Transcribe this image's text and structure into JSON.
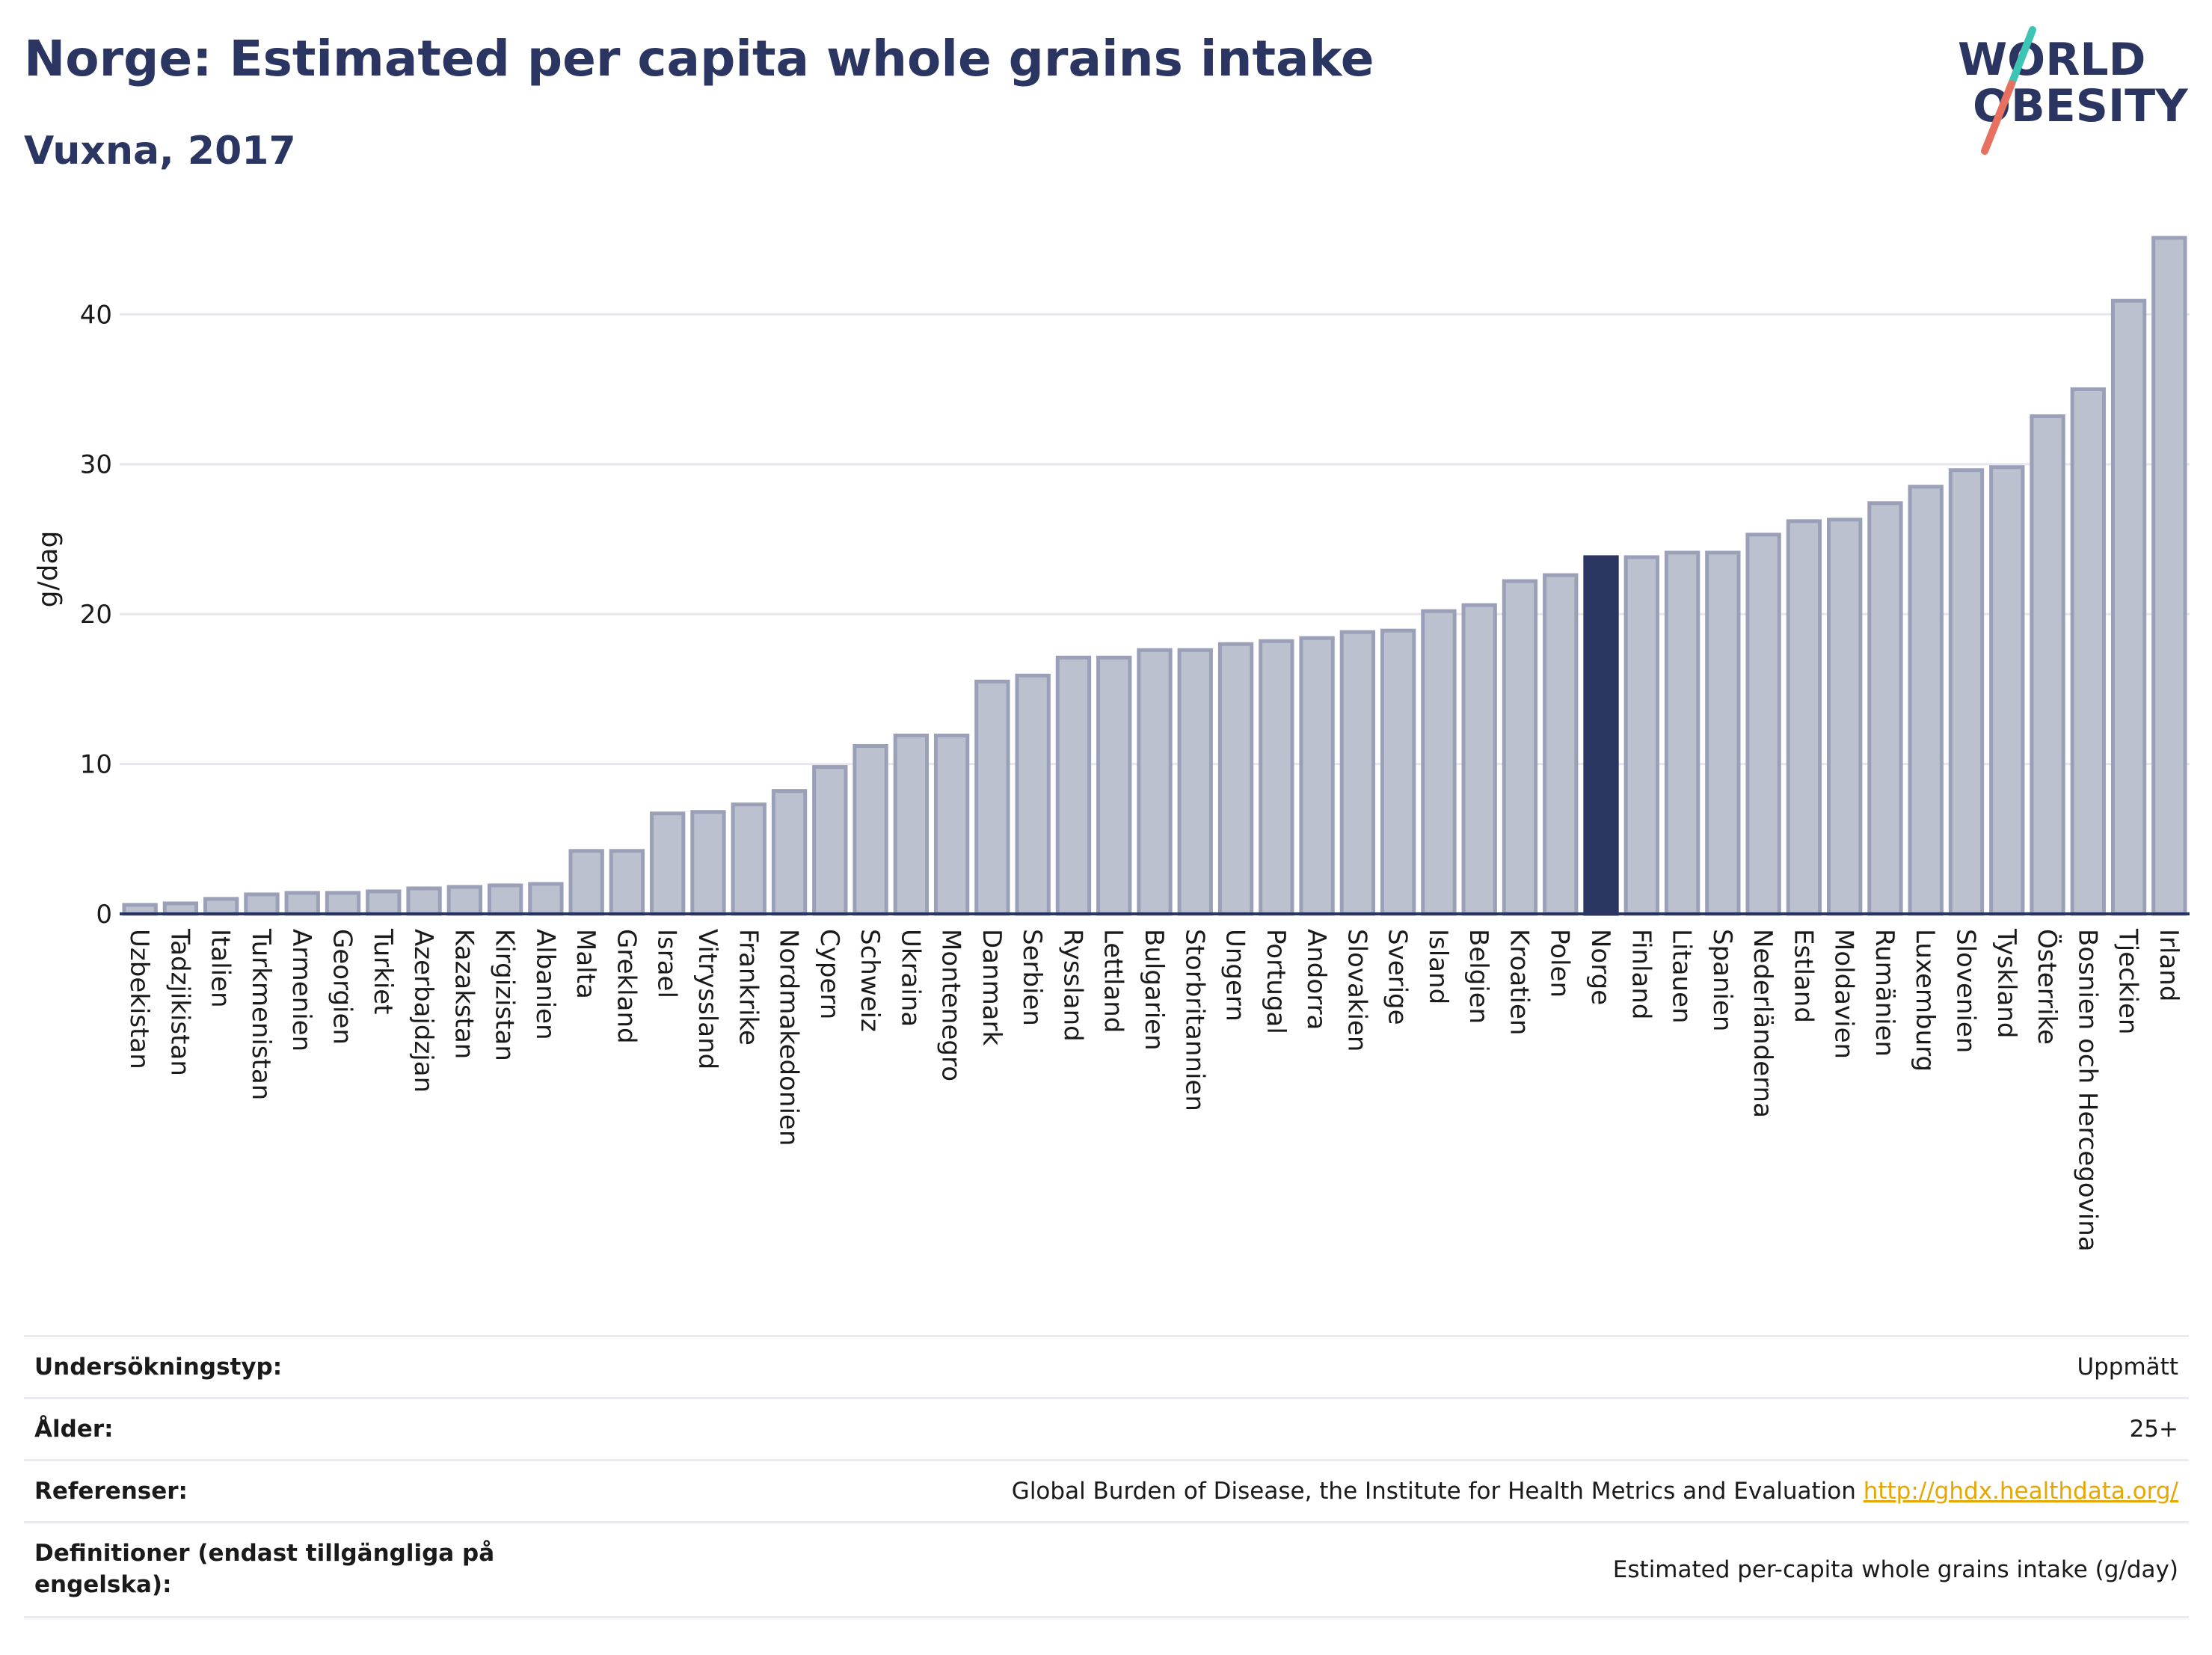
{
  "header": {
    "title": "Norge: Estimated per capita whole grains intake",
    "subtitle": "Vuxna, 2017"
  },
  "logo": {
    "line1": "WORLD",
    "line2": "OBESITY"
  },
  "colors": {
    "bar": "#bcc1cf",
    "bar_border": "#9aa0b8",
    "highlight": "#2b3561",
    "grid": "#e6e6ee",
    "axis": "#2b3561",
    "logo_teal": "#3cc5b4",
    "logo_coral": "#e8705e"
  },
  "chart_data": {
    "type": "bar",
    "ylabel": "g/dag",
    "ylim": [
      0,
      46
    ],
    "yticks": [
      0,
      10,
      20,
      30,
      40
    ],
    "grid": true,
    "highlight": "Norge",
    "categories": [
      "Uzbekistan",
      "Tadzjikistan",
      "Italien",
      "Turkmenistan",
      "Armenien",
      "Georgien",
      "Turkiet",
      "Azerbajdzjan",
      "Kazakstan",
      "Kirgizistan",
      "Albanien",
      "Malta",
      "Grekland",
      "Israel",
      "Vitryssland",
      "Frankrike",
      "Nordmakedonien",
      "Cypern",
      "Schweiz",
      "Ukraina",
      "Montenegro",
      "Danmark",
      "Serbien",
      "Ryssland",
      "Lettland",
      "Bulgarien",
      "Storbritannien",
      "Ungern",
      "Portugal",
      "Andorra",
      "Slovakien",
      "Sverige",
      "Island",
      "Belgien",
      "Kroatien",
      "Polen",
      "Norge",
      "Finland",
      "Litauen",
      "Spanien",
      "Nederländerna",
      "Estland",
      "Moldavien",
      "Rumänien",
      "Luxemburg",
      "Slovenien",
      "Tyskland",
      "Österrike",
      "Bosnien och Hercegovina",
      "Tjeckien",
      "Irland"
    ],
    "values": [
      0.6,
      0.7,
      1.0,
      1.3,
      1.4,
      1.4,
      1.5,
      1.7,
      1.8,
      1.9,
      2.0,
      4.2,
      4.2,
      6.7,
      6.8,
      7.3,
      8.2,
      9.8,
      11.2,
      11.9,
      11.9,
      15.5,
      15.9,
      17.1,
      17.1,
      17.6,
      17.6,
      18.0,
      18.2,
      18.4,
      18.8,
      18.9,
      20.2,
      20.6,
      22.2,
      22.6,
      23.8,
      23.8,
      24.1,
      24.1,
      25.3,
      26.2,
      26.3,
      27.4,
      28.5,
      29.6,
      29.8,
      33.2,
      35.0,
      40.9,
      45.1
    ]
  },
  "info": {
    "rows": [
      {
        "label": "Undersökningstyp:",
        "value": "Uppmätt"
      },
      {
        "label": "Ålder:",
        "value": "25+"
      },
      {
        "label": "Referenser:",
        "value": "Global Burden of Disease, the Institute for Health Metrics and Evaluation",
        "link": "http://ghdx.healthdata.org/"
      },
      {
        "label": "Definitioner (endast tillgängliga på engelska):",
        "value": "Estimated per-capita whole grains intake (g/day)"
      }
    ]
  }
}
